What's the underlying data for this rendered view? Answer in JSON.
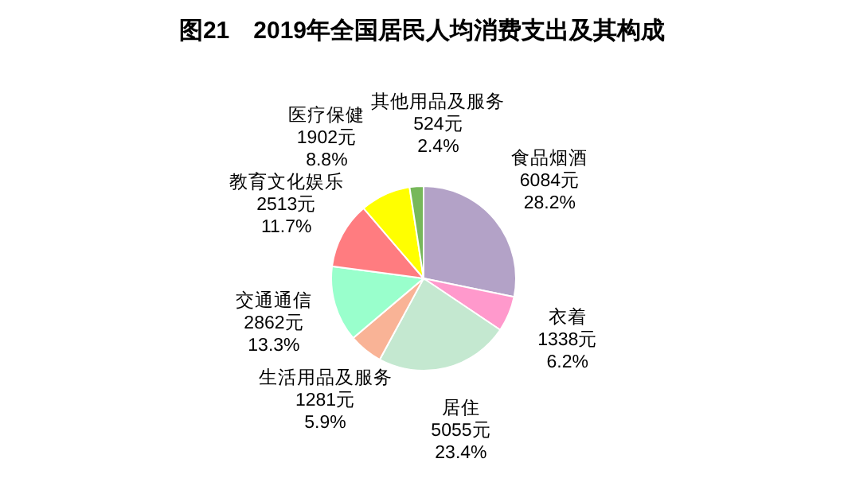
{
  "chart_data": {
    "type": "pie",
    "title": "图21　2019年全国居民人均消费支出及其构成",
    "categories": [
      "食品烟酒",
      "衣着",
      "居住",
      "生活用品及服务",
      "交通通信",
      "教育文化娱乐",
      "医疗保健",
      "其他用品及服务"
    ],
    "values": [
      6084,
      1338,
      5055,
      1281,
      2862,
      2513,
      1902,
      524
    ],
    "value_labels": [
      "6084元\n28.2%",
      "1338元\n6.2%",
      "5055元\n23.4%",
      "1281元\n5.9%",
      "2862元\n13.3%",
      "2513元\n11.7%",
      "1902元\n8.8%",
      "524元\n2.4%"
    ],
    "colors": [
      "#b3a2c7",
      "#ff99cc",
      "#c4e8d0",
      "#f9b396",
      "#99ffcc",
      "#ff7c80",
      "#ffff00",
      "#77b85a"
    ]
  }
}
